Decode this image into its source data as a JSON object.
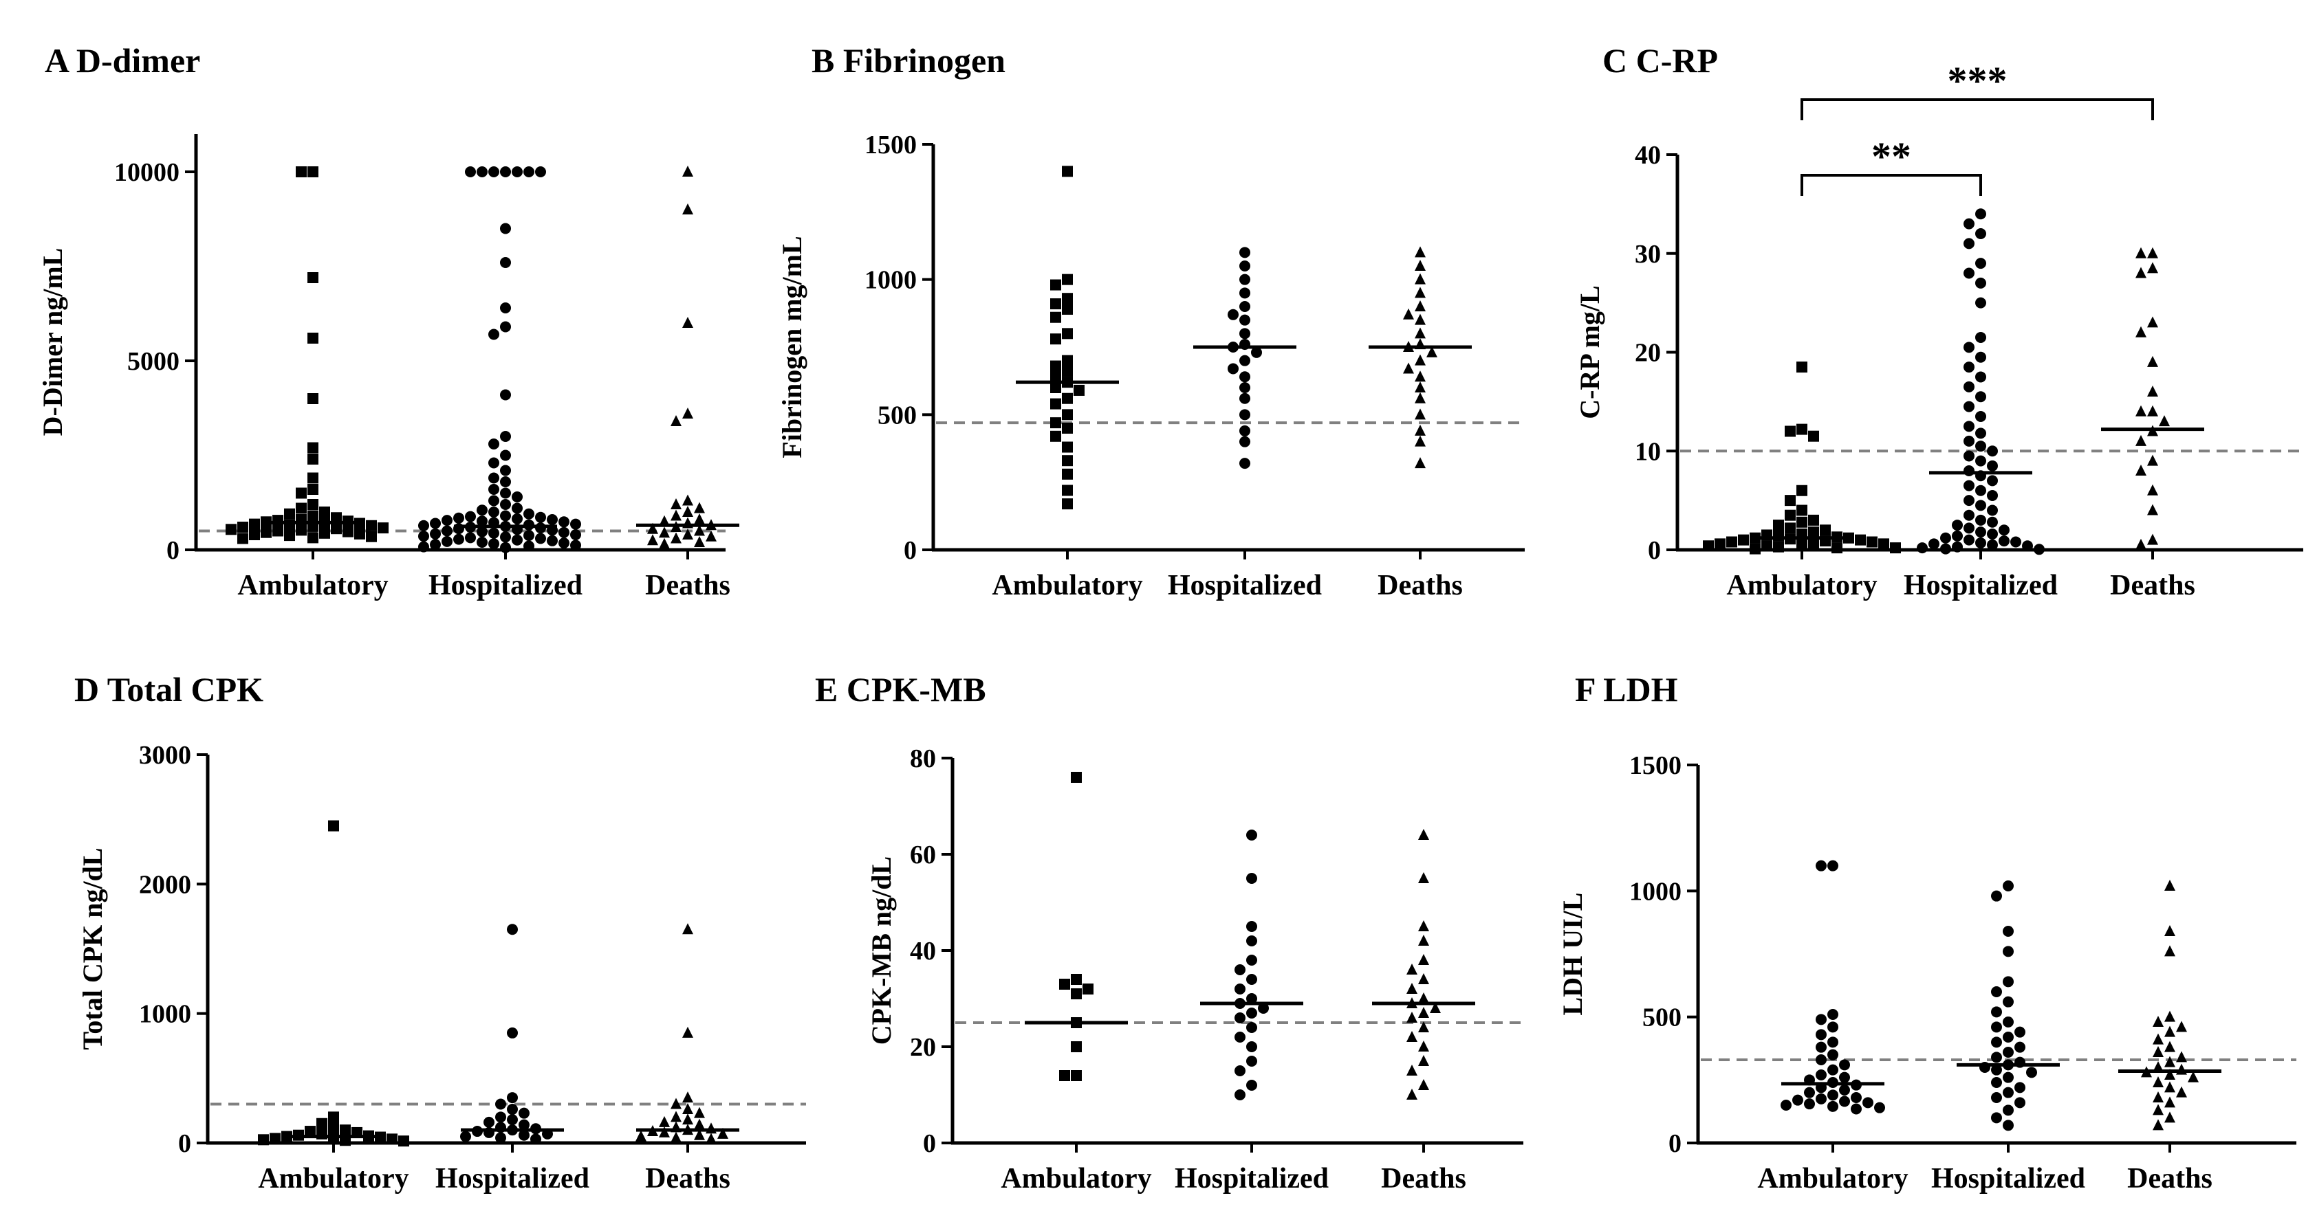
{
  "figure": {
    "marker_color": "#000000",
    "reference_line_color": "#808080"
  },
  "chart_data": [
    {
      "id": "A",
      "type": "scatter",
      "subtype": "dot-plot",
      "title": "A D-dimer",
      "ylabel": "D-Dimer ng/mL",
      "categories": [
        "Ambulatory",
        "Hospitalized",
        "Deaths"
      ],
      "ylim": [
        0,
        11000
      ],
      "yticks": [
        0,
        5000,
        10000
      ],
      "yticklabels": [
        "0",
        "5000",
        "10000"
      ],
      "reference_line": 500,
      "medians": [
        720,
        620,
        650
      ],
      "series": [
        {
          "name": "Ambulatory",
          "marker": "square",
          "values": [
            10000,
            10000,
            7200,
            5600,
            4000,
            2700,
            2400,
            1900,
            1600,
            1500,
            1200,
            1100,
            1000,
            950,
            900,
            850,
            800,
            780,
            760,
            740,
            720,
            700,
            680,
            660,
            640,
            620,
            600,
            580,
            560,
            540,
            520,
            500,
            480,
            460,
            440,
            420,
            400,
            380,
            350,
            320,
            300
          ]
        },
        {
          "name": "Hospitalized",
          "marker": "circle",
          "values": [
            10000,
            10000,
            10000,
            10000,
            10000,
            10000,
            10000,
            8500,
            7600,
            6400,
            5900,
            5700,
            4100,
            3000,
            2800,
            2500,
            2300,
            2100,
            1900,
            1800,
            1600,
            1500,
            1400,
            1300,
            1200,
            1100,
            1050,
            1000,
            950,
            900,
            880,
            860,
            840,
            820,
            800,
            780,
            760,
            740,
            720,
            700,
            680,
            660,
            640,
            620,
            600,
            580,
            560,
            540,
            520,
            500,
            480,
            460,
            440,
            420,
            400,
            380,
            360,
            340,
            320,
            300,
            280,
            260,
            240,
            220,
            200,
            180,
            160,
            140,
            120,
            100,
            80,
            60
          ]
        },
        {
          "name": "Deaths",
          "marker": "triangle",
          "values": [
            10000,
            9000,
            6000,
            3600,
            3400,
            1300,
            1200,
            1100,
            1000,
            900,
            800,
            750,
            700,
            650,
            600,
            550,
            500,
            450,
            400,
            350,
            300,
            250,
            200,
            150
          ]
        }
      ]
    },
    {
      "id": "B",
      "type": "scatter",
      "subtype": "dot-plot",
      "title": "B Fibrinogen",
      "ylabel": "Fibrinogen mg/mL",
      "categories": [
        "Ambulatory",
        "Hospitalized",
        "Deaths"
      ],
      "ylim": [
        0,
        1500
      ],
      "yticks": [
        0,
        500,
        1000,
        1500
      ],
      "yticklabels": [
        "0",
        "500",
        "1000",
        "1500"
      ],
      "reference_line": 470,
      "medians": [
        620,
        750,
        750
      ],
      "series": [
        {
          "name": "Ambulatory",
          "marker": "square",
          "values": [
            1400,
            1000,
            980,
            930,
            910,
            890,
            860,
            800,
            780,
            700,
            680,
            660,
            640,
            620,
            600,
            590,
            560,
            540,
            500,
            470,
            450,
            420,
            380,
            330,
            280,
            220,
            170
          ]
        },
        {
          "name": "Hospitalized",
          "marker": "circle",
          "values": [
            1100,
            1050,
            1000,
            950,
            900,
            870,
            850,
            800,
            760,
            750,
            730,
            700,
            670,
            640,
            600,
            560,
            500,
            440,
            400,
            320
          ]
        },
        {
          "name": "Deaths",
          "marker": "triangle",
          "values": [
            1100,
            1050,
            1000,
            950,
            900,
            870,
            850,
            800,
            760,
            750,
            730,
            700,
            670,
            640,
            600,
            560,
            500,
            440,
            400,
            320
          ]
        }
      ]
    },
    {
      "id": "C",
      "type": "scatter",
      "subtype": "dot-plot",
      "title": "C C-RP",
      "ylabel": "C-RP mg/L",
      "categories": [
        "Ambulatory",
        "Hospitalized",
        "Deaths"
      ],
      "ylim": [
        0,
        40
      ],
      "yticks": [
        0,
        10,
        20,
        30,
        40
      ],
      "yticklabels": [
        "0",
        "10",
        "20",
        "30",
        "40"
      ],
      "reference_line": 10,
      "medians": [
        1.2,
        7.8,
        12.2
      ],
      "significance": [
        {
          "from": "Ambulatory",
          "to": "Hospitalized",
          "label": "**"
        },
        {
          "from": "Ambulatory",
          "to": "Deaths",
          "label": "***"
        }
      ],
      "series": [
        {
          "name": "Ambulatory",
          "marker": "square",
          "values": [
            18.5,
            12.2,
            12,
            11.5,
            6,
            5,
            4,
            3.5,
            3,
            2.8,
            2.5,
            2.2,
            2,
            1.8,
            1.6,
            1.5,
            1.4,
            1.3,
            1.2,
            1.1,
            1,
            0.9,
            0.8,
            0.7,
            0.6,
            0.5,
            0.4,
            0.3,
            0.2,
            0.1,
            1.2,
            1,
            0.8,
            0.6,
            0.4,
            0.2
          ]
        },
        {
          "name": "Hospitalized",
          "marker": "circle",
          "values": [
            34,
            33,
            32,
            31,
            29,
            28,
            27,
            25,
            21.5,
            20.5,
            19.5,
            18.5,
            17.5,
            16.5,
            15.5,
            14.5,
            13.5,
            12.5,
            11.8,
            11,
            10.5,
            10,
            9.5,
            9,
            8.5,
            8,
            7.5,
            7,
            6.5,
            6,
            5.5,
            5,
            4.5,
            4,
            3.5,
            3,
            2.8,
            2.5,
            2.2,
            2,
            1.8,
            1.6,
            1.4,
            1.2,
            1,
            0.9,
            0.8,
            0.7,
            0.6,
            0.5,
            0.4,
            0.3,
            0.2,
            0.1,
            0.05
          ]
        },
        {
          "name": "Deaths",
          "marker": "triangle",
          "values": [
            30,
            30,
            28.5,
            28,
            23,
            22,
            19,
            16,
            14,
            14,
            13,
            12,
            11,
            9,
            8,
            6,
            4,
            1,
            0.5
          ]
        }
      ]
    },
    {
      "id": "D",
      "type": "scatter",
      "subtype": "dot-plot",
      "title": "D Total CPK",
      "ylabel": "Total CPK ng/dL",
      "categories": [
        "Ambulatory",
        "Hospitalized",
        "Deaths"
      ],
      "ylim": [
        0,
        3000
      ],
      "yticks": [
        0,
        1000,
        2000,
        3000
      ],
      "yticklabels": [
        "0",
        "1000",
        "2000",
        "3000"
      ],
      "reference_line": 300,
      "medians": [
        50,
        100,
        100
      ],
      "series": [
        {
          "name": "Ambulatory",
          "marker": "square",
          "values": [
            2450,
            200,
            150,
            120,
            100,
            90,
            80,
            70,
            60,
            55,
            50,
            45,
            40,
            35,
            30,
            25,
            20,
            15
          ]
        },
        {
          "name": "Hospitalized",
          "marker": "circle",
          "values": [
            1650,
            850,
            350,
            300,
            260,
            230,
            200,
            180,
            160,
            140,
            120,
            110,
            100,
            90,
            80,
            70,
            60,
            50,
            40,
            30
          ]
        },
        {
          "name": "Deaths",
          "marker": "triangle",
          "values": [
            1650,
            850,
            350,
            300,
            260,
            230,
            200,
            180,
            160,
            140,
            120,
            110,
            100,
            90,
            80,
            70,
            60,
            50,
            40,
            30
          ]
        }
      ]
    },
    {
      "id": "E",
      "type": "scatter",
      "subtype": "dot-plot",
      "title": "E CPK-MB",
      "ylabel": "CPK-MB ng/dL",
      "categories": [
        "Ambulatory",
        "Hospitalized",
        "Deaths"
      ],
      "ylim": [
        0,
        80
      ],
      "yticks": [
        0,
        20,
        40,
        60,
        80
      ],
      "yticklabels": [
        "0",
        "20",
        "40",
        "60",
        "80"
      ],
      "reference_line": 25,
      "medians": [
        25,
        29,
        29
      ],
      "series": [
        {
          "name": "Ambulatory",
          "marker": "square",
          "values": [
            76,
            34,
            33,
            32,
            31,
            25,
            20,
            14,
            14
          ]
        },
        {
          "name": "Hospitalized",
          "marker": "circle",
          "values": [
            64,
            55,
            45,
            42,
            38,
            36,
            34,
            32,
            30,
            29,
            28,
            27,
            26,
            24,
            22,
            20,
            17,
            15,
            12,
            10
          ]
        },
        {
          "name": "Deaths",
          "marker": "triangle",
          "values": [
            64,
            55,
            45,
            42,
            38,
            36,
            34,
            32,
            30,
            29,
            28,
            27,
            26,
            24,
            22,
            20,
            17,
            15,
            12,
            10
          ]
        }
      ]
    },
    {
      "id": "F",
      "type": "scatter",
      "subtype": "dot-plot",
      "title": "F LDH",
      "ylabel": "LDH   UI/L",
      "categories": [
        "Ambulatory",
        "Hospitalized",
        "Deaths"
      ],
      "ylim": [
        0,
        1500
      ],
      "yticks": [
        0,
        500,
        1000,
        1500
      ],
      "yticklabels": [
        "0",
        "500",
        "1000",
        "1500"
      ],
      "reference_line": 330,
      "medians": [
        235,
        310,
        285
      ],
      "series": [
        {
          "name": "Ambulatory",
          "marker": "circle",
          "values": [
            1100,
            1100,
            510,
            490,
            460,
            430,
            400,
            380,
            350,
            330,
            310,
            290,
            270,
            260,
            250,
            240,
            230,
            220,
            210,
            200,
            190,
            180,
            175,
            170,
            165,
            160,
            155,
            150,
            145,
            140,
            135
          ]
        },
        {
          "name": "Hospitalized",
          "marker": "circle",
          "values": [
            1020,
            980,
            840,
            760,
            640,
            600,
            560,
            520,
            480,
            460,
            440,
            420,
            400,
            380,
            360,
            340,
            320,
            310,
            300,
            290,
            280,
            260,
            240,
            220,
            200,
            180,
            160,
            130,
            100,
            70
          ]
        },
        {
          "name": "Deaths",
          "marker": "triangle",
          "values": [
            1020,
            840,
            760,
            500,
            480,
            460,
            440,
            410,
            380,
            360,
            340,
            320,
            300,
            290,
            280,
            270,
            260,
            240,
            220,
            200,
            180,
            160,
            130,
            100,
            70
          ]
        }
      ]
    }
  ]
}
